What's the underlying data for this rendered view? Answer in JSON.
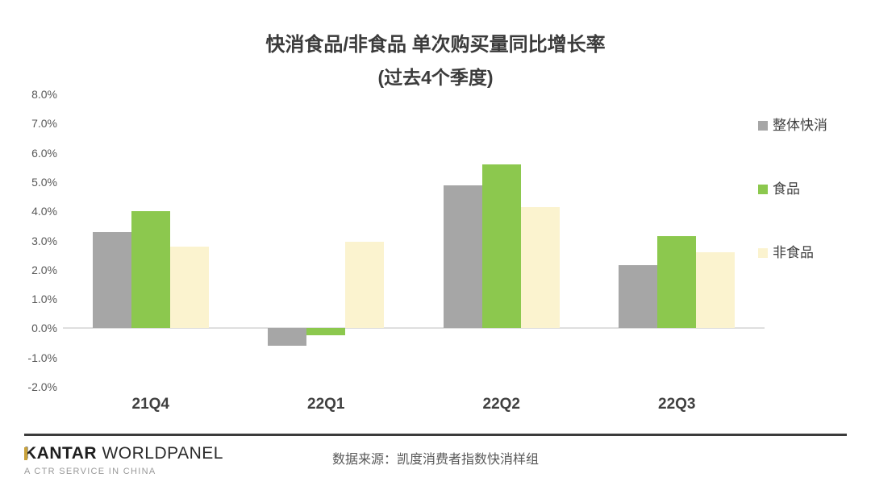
{
  "title": {
    "line1": "快消食品/非食品 单次购买量同比增长率",
    "line2": "(过去4个季度)"
  },
  "chart_data": {
    "type": "bar",
    "title": "快消食品/非食品 单次购买量同比增长率 (过去4个季度)",
    "categories": [
      "21Q4",
      "22Q1",
      "22Q2",
      "22Q3"
    ],
    "series": [
      {
        "name": "整体快消",
        "color": "#a6a6a6",
        "values": [
          3.3,
          -0.6,
          4.9,
          2.15
        ]
      },
      {
        "name": "食品",
        "color": "#8cc84e",
        "values": [
          4.0,
          -0.25,
          5.6,
          3.15
        ]
      },
      {
        "name": "非食品",
        "color": "#fbf3cf",
        "values": [
          2.8,
          2.95,
          4.15,
          2.6
        ]
      }
    ],
    "xlabel": "",
    "ylabel": "",
    "ylim": [
      -2.0,
      8.0
    ],
    "ytick_step": 1.0,
    "ytick_labels": [
      "8.0%",
      "7.0%",
      "6.0%",
      "5.0%",
      "4.0%",
      "3.0%",
      "2.0%",
      "1.0%",
      "0.0%",
      "-1.0%",
      "-2.0%"
    ],
    "grid": false,
    "zero_line": true,
    "legend_position": "right"
  },
  "footer": {
    "logo_kantar": "KANTAR",
    "logo_worldpanel": "WORLDPANEL",
    "logo_tagline": "A CTR SERVICE IN CHINA",
    "source": "数据来源：凯度消费者指数快消样组"
  },
  "colors": {
    "title_text": "#3b3b3b",
    "axis_text": "#595959",
    "category_text": "#3f3f3f",
    "legend_text": "#404040",
    "zero_line": "#dfdfdf",
    "divider": "#3b3b3b",
    "logo_gold": "#c9a23b",
    "background": "#ffffff"
  }
}
